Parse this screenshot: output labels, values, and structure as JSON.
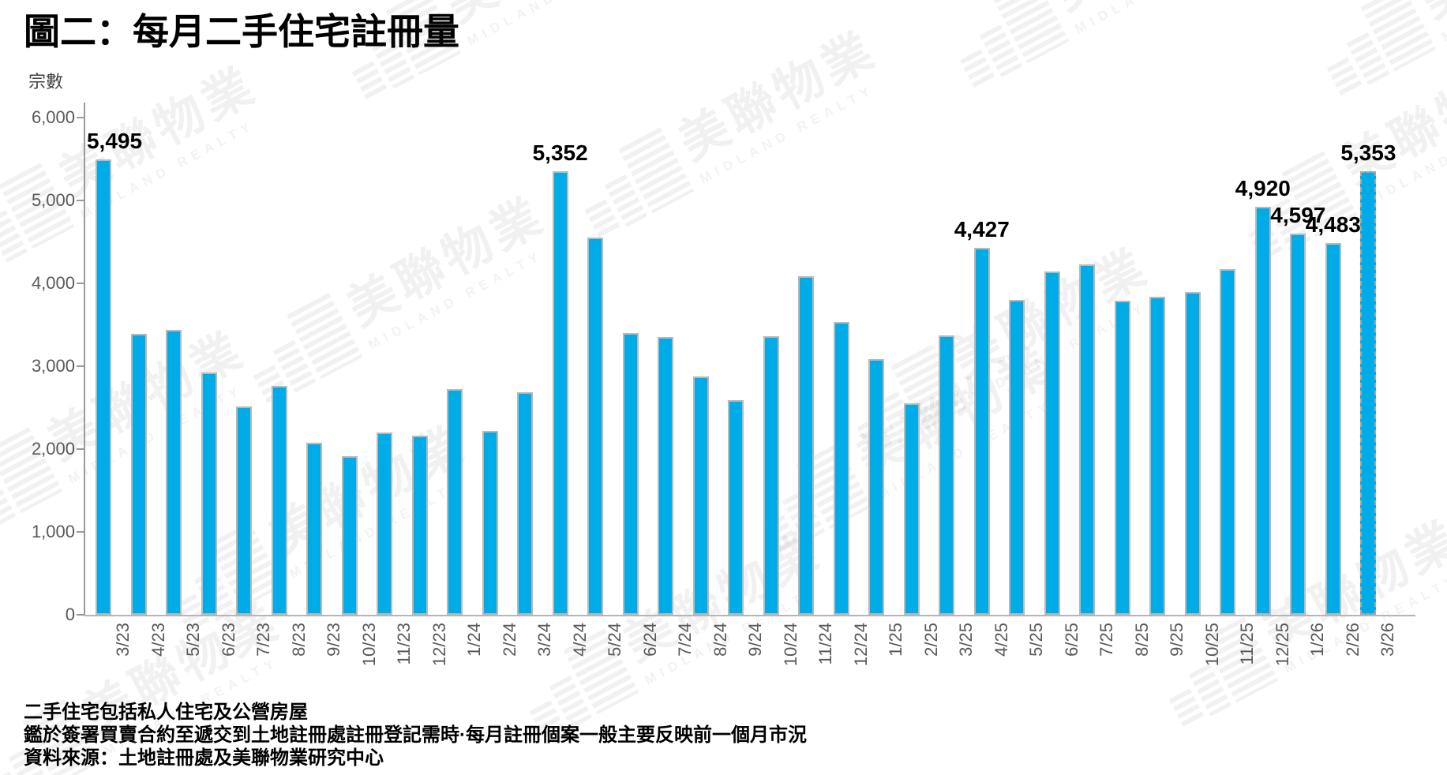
{
  "page": {
    "title": "圖二：每月二手住宅註冊量"
  },
  "watermark": {
    "zh": "美聯物業",
    "en": "MIDLAND REALTY"
  },
  "chart_data": {
    "type": "bar",
    "title": "圖二：每月二手住宅註冊量",
    "xlabel": "",
    "ylabel": "宗數",
    "ylim": [
      0,
      6000
    ],
    "grid": false,
    "legend": null,
    "yticks": [
      {
        "value": 6000,
        "label": "6,000"
      },
      {
        "value": 5000,
        "label": "5,000"
      },
      {
        "value": 4000,
        "label": "4,000"
      },
      {
        "value": 3000,
        "label": "3,000"
      },
      {
        "value": 2000,
        "label": "2,000"
      },
      {
        "value": 1000,
        "label": "1,000"
      },
      {
        "value": 0,
        "label": "0"
      }
    ],
    "categories": [
      "3/23",
      "4/23",
      "5/23",
      "6/23",
      "7/23",
      "8/23",
      "9/23",
      "10/23",
      "11/23",
      "12/23",
      "1/24",
      "2/24",
      "3/24",
      "4/24",
      "5/24",
      "6/24",
      "7/24",
      "8/24",
      "9/24",
      "10/24",
      "11/24",
      "12/24",
      "1/25",
      "2/25",
      "3/25",
      "4/25",
      "5/25",
      "6/25",
      "7/25",
      "8/25",
      "9/25",
      "10/25",
      "11/25",
      "12/25",
      "1/26",
      "2/26",
      "3/26"
    ],
    "values": [
      5495,
      3390,
      3440,
      2920,
      2510,
      2760,
      2080,
      1910,
      2200,
      2160,
      2720,
      2220,
      2690,
      5352,
      4550,
      3400,
      3350,
      2880,
      2590,
      3360,
      4090,
      3530,
      3090,
      2550,
      3370,
      4427,
      3800,
      4140,
      4230,
      3790,
      3840,
      3900,
      4170,
      4920,
      4597,
      4483,
      5353
    ],
    "data_labels": {
      "3/23": "5,495",
      "4/24": "5,352",
      "4/25": "4,427",
      "12/25": "4,920",
      "1/26": "4,597",
      "2/26": "4,483",
      "3/26": "5,353"
    },
    "estimate_months": [
      "3/26"
    ],
    "colors": {
      "bar_fill": "#00ACE8",
      "bar_border": "#B9B9B9",
      "axis": "#9A9A9A",
      "tick_label": "#595959",
      "data_label": "#000000"
    }
  },
  "footnotes": [
    "二手住宅包括私人住宅及公營房屋",
    "鑑於簽署買賣合約至遞交到土地註冊處註冊登記需時·每月註冊個案一般主要反映前一個月市況",
    "資料來源：土地註冊處及美聯物業研究中心"
  ]
}
